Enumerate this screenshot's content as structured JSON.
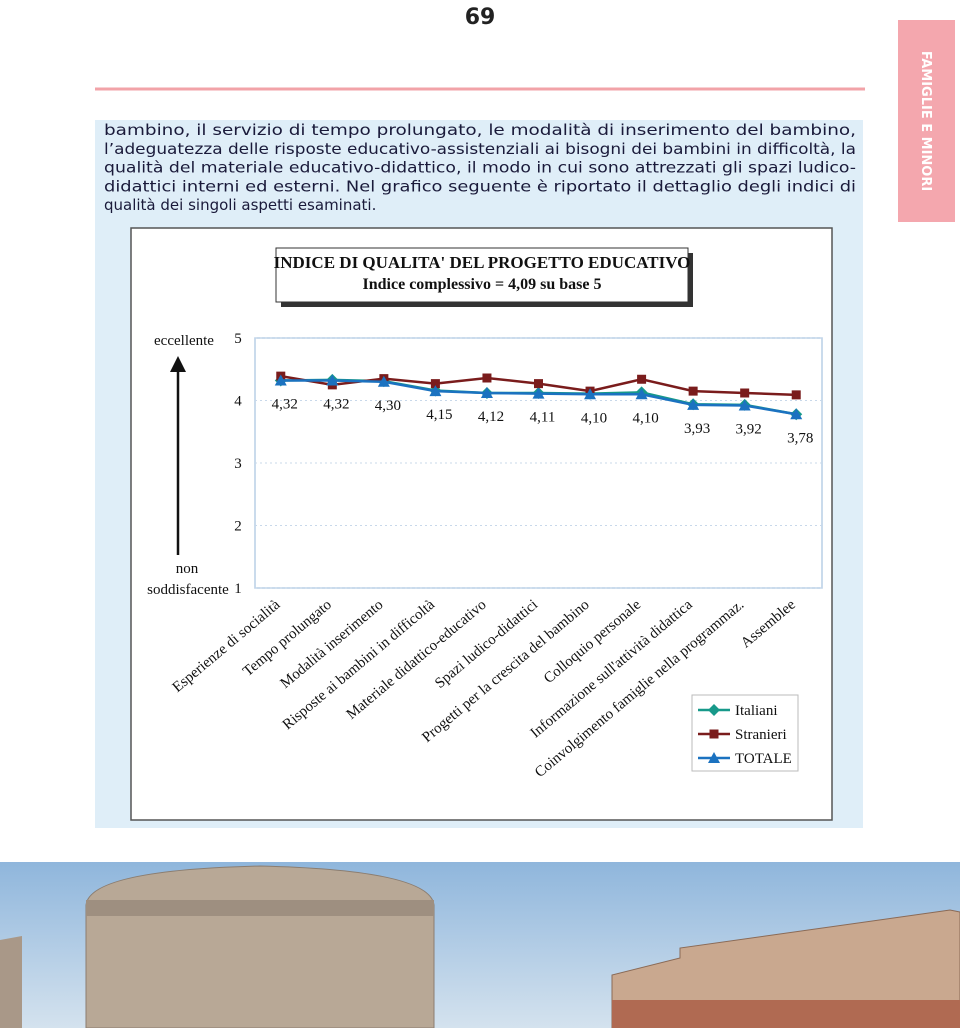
{
  "page_number": "69",
  "side_tab": "FAMIGLIE E MINORI",
  "paragraph": [
    "bambino, il servizio di tempo prolungato, le modalità di inserimento del bambino,",
    "l’adeguatezza delle risposte educativo-assistenziali ai bisogni dei bambini in difficoltà, la",
    "qualità del materiale educativo-didattico, il modo in cui sono attrezzati gli spazi ludico-",
    "didattici interni ed esterni. Nel grafico seguente è riportato il dettaglio degli indici di",
    "qualità dei singoli aspetti esaminati."
  ],
  "chart_data": {
    "type": "line",
    "title": "INDICE DI QUALITA' DEL PROGETTO EDUCATIVO",
    "subtitle": "Indice complessivo = 4,09 su base 5",
    "y_top_label": "eccellente",
    "y_bottom_label": [
      "non",
      "soddisfacente"
    ],
    "categories": [
      "Esperienze di socialità",
      "Tempo prolungato",
      "Modalità inserimento",
      "Risposte ai bambini in difficoltà",
      "Materiale didattico-educativo",
      "Spazi ludico-didattici",
      "Progetti per la crescita del bambino",
      "Colloquio personale",
      "Informazione sull'attività didattica",
      "Coinvolgimento famiglie nella programmaz.",
      "Assemblee"
    ],
    "ylim": [
      1,
      5
    ],
    "yticks": [
      1,
      2,
      3,
      4,
      5
    ],
    "legend": "bottom-right",
    "series": [
      {
        "name": "Italiani",
        "color": "#17998a",
        "marker": "diamond",
        "values": [
          4.32,
          4.33,
          4.31,
          4.16,
          4.12,
          4.12,
          4.11,
          4.13,
          3.94,
          3.93,
          3.78
        ]
      },
      {
        "name": "Stranieri",
        "color": "#7a1c1c",
        "marker": "square",
        "values": [
          4.39,
          4.25,
          4.35,
          4.27,
          4.36,
          4.27,
          4.15,
          4.34,
          4.15,
          4.12,
          4.09
        ]
      },
      {
        "name": "TOTALE",
        "color": "#1b72c0",
        "marker": "triangle",
        "values": [
          4.32,
          4.32,
          4.3,
          4.15,
          4.12,
          4.11,
          4.1,
          4.1,
          3.93,
          3.92,
          3.78
        ],
        "value_labels": [
          "4,32",
          "4,32",
          "4,30",
          "4,15",
          "4,12",
          "4,11",
          "4,10",
          "4,10",
          "3,93",
          "3,92",
          "3,78"
        ]
      }
    ]
  }
}
